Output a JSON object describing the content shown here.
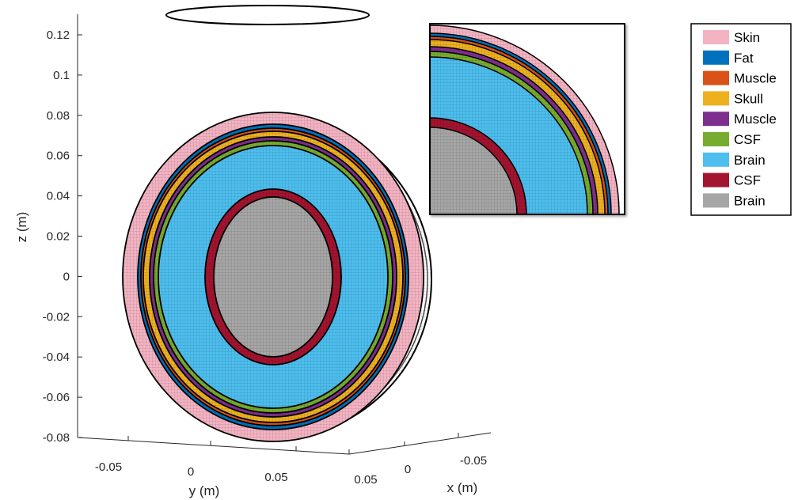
{
  "chart_data": {
    "type": "other",
    "title": "",
    "xlabel": "x (m)",
    "ylabel": "y (m)",
    "zlabel": "z (m)",
    "zlim": [
      -0.08,
      0.12
    ],
    "z_ticks": [
      "0.12",
      "0.1",
      "0.08",
      "0.06",
      "0.04",
      "0.02",
      "0",
      "-0.02",
      "-0.04",
      "-0.06",
      "-0.08"
    ],
    "y_ticks": [
      "-0.05",
      "0",
      "0.05"
    ],
    "x_ticks": [
      "0.05",
      "0",
      "-0.05"
    ],
    "legend_position": "top-right",
    "layers": [
      {
        "name": "Skin",
        "color": "#F4B3C2"
      },
      {
        "name": "Fat",
        "color": "#0072BD"
      },
      {
        "name": "Muscle",
        "color": "#D95319"
      },
      {
        "name": "Skull",
        "color": "#EDB120"
      },
      {
        "name": "Muscle",
        "color": "#7E2F8E"
      },
      {
        "name": "CSF",
        "color": "#77AC30"
      },
      {
        "name": "Brain",
        "color": "#4DBEEE"
      },
      {
        "name": "CSF",
        "color": "#A2142F"
      },
      {
        "name": "Brain",
        "color": "#A6A6A6"
      }
    ]
  }
}
